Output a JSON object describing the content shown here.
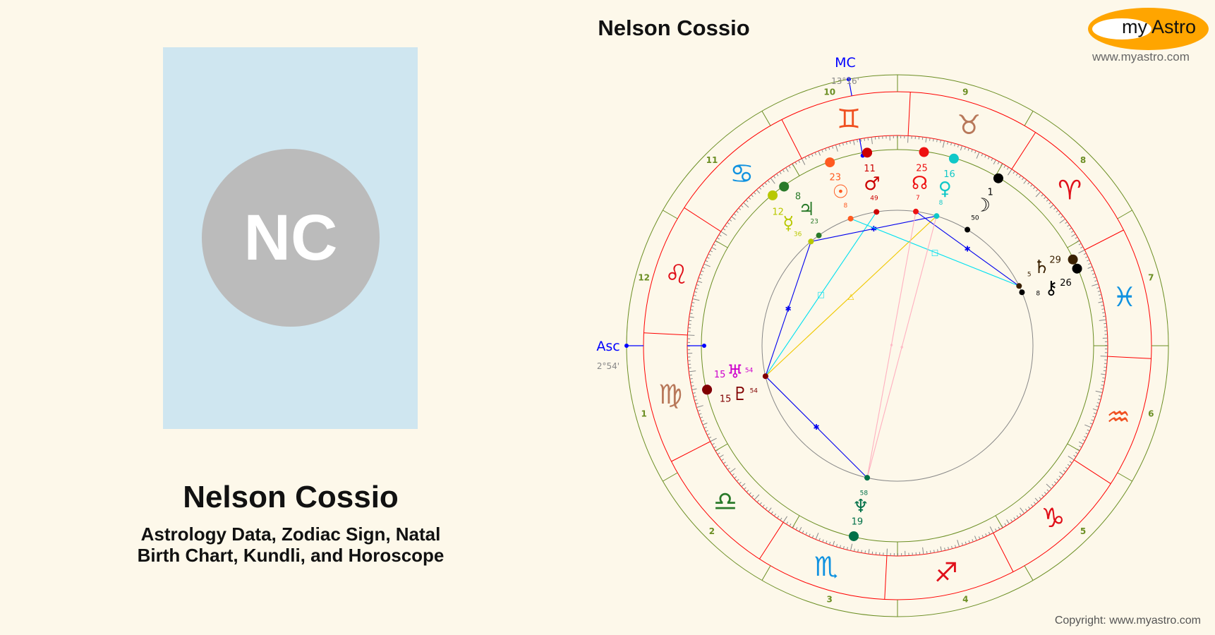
{
  "profile": {
    "initials": "NC",
    "name": "Nelson Cossio",
    "subtitle_line1": "Astrology Data, Zodiac Sign, Natal",
    "subtitle_line2": "Birth Chart, Kundli, and Horoscope",
    "photo_bg": "#cfe6f0",
    "avatar_bg": "#bbbbbb"
  },
  "chart_header": {
    "title": "Nelson Cossio"
  },
  "logo": {
    "text": "my Astro",
    "url": "www.myastro.com",
    "color": "#ffa500"
  },
  "footer": {
    "copyright": "Copyright: www.myastro.com"
  },
  "angles": {
    "mc": {
      "label": "MC",
      "degree_text": "13°16'",
      "sign": "Gemini",
      "deg": 13,
      "min": 16
    },
    "asc": {
      "label": "Asc",
      "degree_text": "2°54'",
      "sign": "Virgo",
      "deg": 2,
      "min": 54
    }
  },
  "signs": [
    {
      "name": "Aries",
      "glyph": "♈",
      "color": "#e0101a"
    },
    {
      "name": "Taurus",
      "glyph": "♉",
      "color": "#b8785a"
    },
    {
      "name": "Gemini",
      "glyph": "♊",
      "color": "#f05020"
    },
    {
      "name": "Cancer",
      "glyph": "♋",
      "color": "#1092e0"
    },
    {
      "name": "Leo",
      "glyph": "♌",
      "color": "#e0101a"
    },
    {
      "name": "Virgo",
      "glyph": "♍",
      "color": "#b8785a"
    },
    {
      "name": "Libra",
      "glyph": "♎",
      "color": "#2a7a2a"
    },
    {
      "name": "Scorpio",
      "glyph": "♏",
      "color": "#1092e0"
    },
    {
      "name": "Sagittarius",
      "glyph": "♐",
      "color": "#e0101a"
    },
    {
      "name": "Capricorn",
      "glyph": "♑",
      "color": "#e0101a"
    },
    {
      "name": "Aquarius",
      "glyph": "♒",
      "color": "#f05020"
    },
    {
      "name": "Pisces",
      "glyph": "♓",
      "color": "#1092e0"
    }
  ],
  "houses": [
    "1",
    "2",
    "3",
    "4",
    "5",
    "6",
    "7",
    "8",
    "9",
    "10",
    "11",
    "12"
  ],
  "planets": [
    {
      "name": "Sun",
      "glyph": "☉",
      "sign": "Gemini",
      "deg": 23,
      "min": 8,
      "color": "#ff5a20"
    },
    {
      "name": "Moon",
      "glyph": "☽",
      "sign": "Taurus",
      "deg": 1,
      "min": 50,
      "color": "#000000"
    },
    {
      "name": "Mercury",
      "glyph": "☿",
      "sign": "Cancer",
      "deg": 12,
      "min": 36,
      "color": "#b8c800"
    },
    {
      "name": "Venus",
      "glyph": "♀",
      "sign": "Taurus",
      "deg": 16,
      "min": 8,
      "color": "#10c8c8"
    },
    {
      "name": "Mars",
      "glyph": "♂",
      "sign": "Gemini",
      "deg": 11,
      "min": 49,
      "color": "#cc0000"
    },
    {
      "name": "Jupiter",
      "glyph": "♃",
      "sign": "Cancer",
      "deg": 8,
      "min": 23,
      "color": "#2a7a2a"
    },
    {
      "name": "Saturn",
      "glyph": "♄",
      "sign": "Pisces",
      "deg": 29,
      "min": 5,
      "color": "#3a2000"
    },
    {
      "name": "Chiron",
      "glyph": "⚷",
      "sign": "Pisces",
      "deg": 26,
      "min": 8,
      "color": "#000000"
    },
    {
      "name": "Uranus",
      "glyph": "♅",
      "sign": "Virgo",
      "deg": 15,
      "min": 54,
      "color": "#cc00cc"
    },
    {
      "name": "Pluto",
      "glyph": "♇",
      "sign": "Virgo",
      "deg": 15,
      "min": 54,
      "color": "#800000"
    },
    {
      "name": "Neptune",
      "glyph": "♆",
      "sign": "Scorpio",
      "deg": 19,
      "min": 58,
      "color": "#007048"
    },
    {
      "name": "North Node",
      "glyph": "☊",
      "sign": "Taurus",
      "deg": 25,
      "min": 7,
      "color": "#ee1111"
    }
  ],
  "aspects": [
    {
      "from": "Uranus",
      "to": "Mercury",
      "color": "#0000ee",
      "symbol": "✱"
    },
    {
      "from": "Uranus",
      "to": "Neptune",
      "color": "#0000ee",
      "symbol": "✱"
    },
    {
      "from": "Uranus",
      "to": "Mars",
      "color": "#00e0f0",
      "symbol": "□"
    },
    {
      "from": "Uranus",
      "to": "Venus",
      "color": "#f0c800",
      "symbol": "△"
    },
    {
      "from": "Mercury",
      "to": "Venus",
      "color": "#0000ee",
      "symbol": "✱"
    },
    {
      "from": "North Node",
      "to": "Saturn",
      "color": "#0000ee",
      "symbol": "✱"
    },
    {
      "from": "Sun",
      "to": "Saturn",
      "color": "#00e0f0",
      "symbol": "□"
    },
    {
      "from": "Neptune",
      "to": "North Node",
      "color": "#ffb0c0",
      "symbol": "∘"
    },
    {
      "from": "Neptune",
      "to": "Venus",
      "color": "#ffb0c0",
      "symbol": "∘"
    }
  ],
  "colors": {
    "background": "#fdf8ea",
    "ring_red": "#ff0000",
    "ring_green": "#6b8e23",
    "angle_blue": "#0000ff"
  }
}
